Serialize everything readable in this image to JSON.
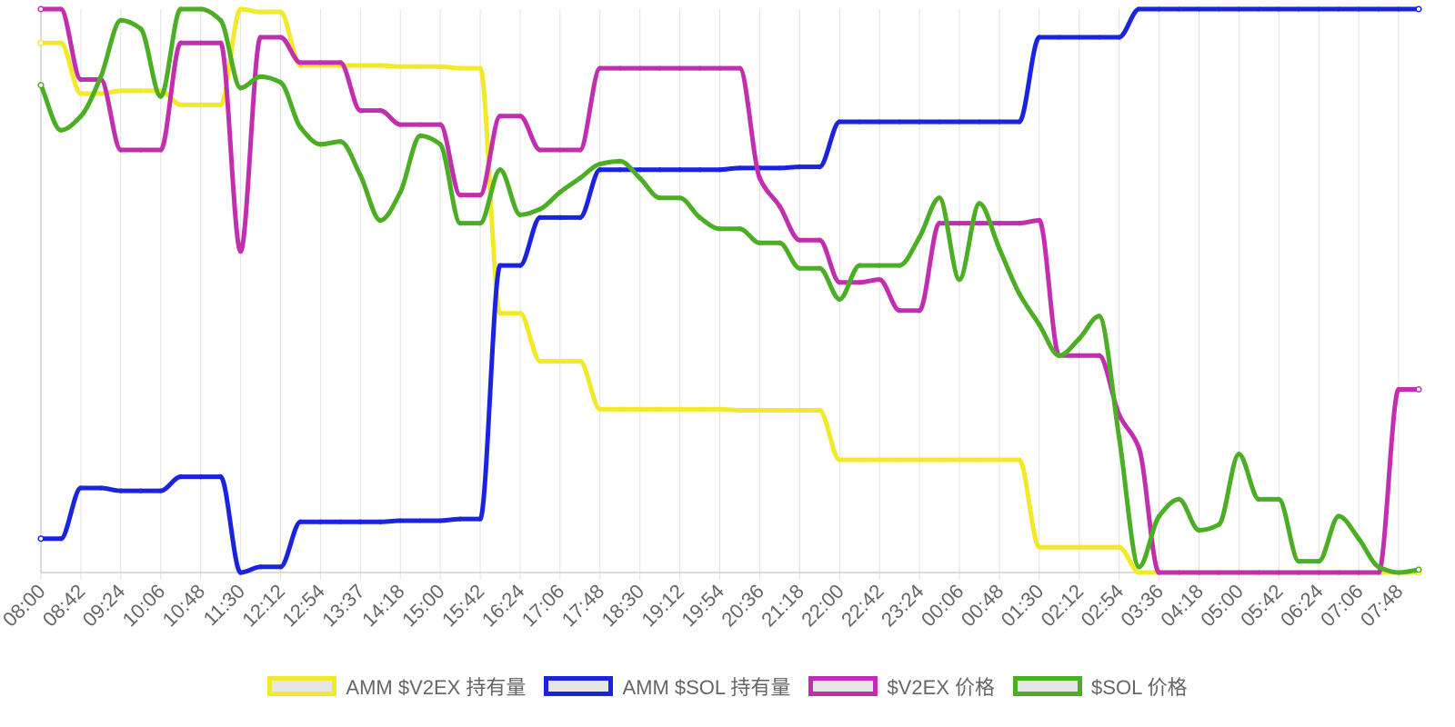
{
  "chart_data": {
    "type": "line",
    "title": "",
    "xlabel": "",
    "ylabel": "",
    "grid": true,
    "y_axis_labels": false,
    "legend_position": "bottom",
    "x": [
      "08:00",
      "08:21",
      "08:42",
      "09:03",
      "09:24",
      "09:45",
      "10:06",
      "10:27",
      "10:48",
      "11:09",
      "11:30",
      "11:51",
      "12:12",
      "12:33",
      "12:54",
      "13:15",
      "13:37",
      "13:58",
      "14:18",
      "14:39",
      "15:00",
      "15:21",
      "15:42",
      "16:03",
      "16:24",
      "16:45",
      "17:06",
      "17:27",
      "17:48",
      "18:09",
      "18:30",
      "18:51",
      "19:12",
      "19:33",
      "19:54",
      "20:15",
      "20:36",
      "20:57",
      "21:18",
      "21:39",
      "22:00",
      "22:21",
      "22:42",
      "23:03",
      "23:24",
      "23:45",
      "00:06",
      "00:27",
      "00:48",
      "01:09",
      "01:30",
      "01:51",
      "02:12",
      "02:33",
      "02:54",
      "03:15",
      "03:36",
      "03:57",
      "04:18",
      "04:39",
      "05:00",
      "05:21",
      "05:42",
      "06:03",
      "06:24",
      "06:45",
      "07:06",
      "07:27",
      "07:48",
      "08:09"
    ],
    "x_tick_labels": [
      "08:00",
      "08:42",
      "09:24",
      "10:06",
      "10:48",
      "11:30",
      "12:12",
      "12:54",
      "13:37",
      "14:18",
      "15:00",
      "15:42",
      "16:24",
      "17:06",
      "17:48",
      "18:30",
      "19:12",
      "19:54",
      "20:36",
      "21:18",
      "22:00",
      "22:42",
      "23:24",
      "00:06",
      "00:48",
      "01:30",
      "02:12",
      "02:54",
      "03:36",
      "04:18",
      "05:00",
      "05:42",
      "06:24",
      "07:06",
      "07:48"
    ],
    "series": [
      {
        "name": "AMM $V2EX 持有量",
        "color": "#f2e92b",
        "values": [
          94,
          94,
          85,
          85,
          85.5,
          85.5,
          85.5,
          83,
          83,
          83,
          100,
          99.5,
          99.5,
          90,
          90,
          90,
          90,
          90,
          89.8,
          89.8,
          89.8,
          89.5,
          89.5,
          46,
          46,
          37.5,
          37.5,
          37.5,
          29,
          29,
          29,
          29,
          29,
          29,
          29,
          28.8,
          28.8,
          28.8,
          28.8,
          28.8,
          20,
          20,
          20,
          20,
          20,
          20,
          20,
          20,
          20,
          20,
          4.5,
          4.5,
          4.5,
          4.5,
          4.5,
          0,
          0,
          0,
          0,
          0,
          0,
          0,
          0,
          0,
          0,
          0,
          0,
          0,
          0,
          0
        ]
      },
      {
        "name": "AMM $SOL 持有量",
        "color": "#1a24e0",
        "values": [
          6,
          6,
          15,
          15,
          14.5,
          14.5,
          14.5,
          17,
          17,
          17,
          0,
          1,
          1,
          9,
          9,
          9,
          9,
          9,
          9.2,
          9.2,
          9.2,
          9.5,
          9.5,
          54.5,
          54.5,
          63,
          63,
          63,
          71.5,
          71.5,
          71.5,
          71.5,
          71.5,
          71.5,
          71.5,
          71.8,
          71.8,
          71.8,
          72,
          72,
          80,
          80,
          80,
          80,
          80,
          80,
          80,
          80,
          80,
          80,
          95,
          95,
          95,
          95,
          95,
          100,
          100,
          100,
          100,
          100,
          100,
          100,
          100,
          100,
          100,
          100,
          100,
          100,
          100,
          100
        ]
      },
      {
        "name": "$V2EX 价格",
        "color": "#c22fae",
        "values": [
          100,
          100,
          87.5,
          87.5,
          75,
          75,
          75,
          94,
          94,
          94,
          57,
          95,
          95,
          90.5,
          90.5,
          90.5,
          82,
          82,
          79.5,
          79.5,
          79.5,
          67,
          67,
          81,
          81,
          75,
          75,
          75,
          89.5,
          89.5,
          89.5,
          89.5,
          89.5,
          89.5,
          89.5,
          89.5,
          70,
          65,
          59,
          59,
          51.5,
          51.5,
          52,
          46.5,
          46.5,
          62,
          62,
          62,
          62,
          62,
          62.5,
          38.5,
          38.5,
          38.5,
          28,
          22,
          0,
          0,
          0,
          0,
          0,
          0,
          0,
          0,
          0,
          0,
          0,
          0,
          32.5,
          32.5
        ]
      },
      {
        "name": "$SOL 价格",
        "color": "#4cae24",
        "values": [
          86.5,
          78.5,
          81,
          88,
          98,
          96.5,
          84.5,
          100,
          100,
          98,
          86,
          88,
          87,
          79,
          76,
          76.5,
          70.5,
          62.5,
          67.5,
          77.5,
          76,
          62,
          62,
          71.5,
          63.5,
          64.5,
          67.5,
          70,
          72.5,
          73,
          70,
          66.5,
          66.5,
          63,
          61,
          61,
          58.5,
          58.5,
          54,
          54,
          48.5,
          54.5,
          54.5,
          54.5,
          59.5,
          66.5,
          52,
          65.5,
          57.5,
          49.5,
          44,
          38.5,
          41.5,
          45.5,
          24,
          1,
          10,
          13,
          7.5,
          8.5,
          21,
          13,
          13,
          2,
          2,
          10,
          6,
          1,
          0,
          0.5
        ]
      }
    ]
  },
  "legend": {
    "items": [
      {
        "label": "AMM $V2EX 持有量",
        "color": "#f2e92b"
      },
      {
        "label": "AMM $SOL 持有量",
        "color": "#1a24e0"
      },
      {
        "label": "$V2EX 价格",
        "color": "#c22fae"
      },
      {
        "label": "$SOL 价格",
        "color": "#4cae24"
      }
    ]
  }
}
